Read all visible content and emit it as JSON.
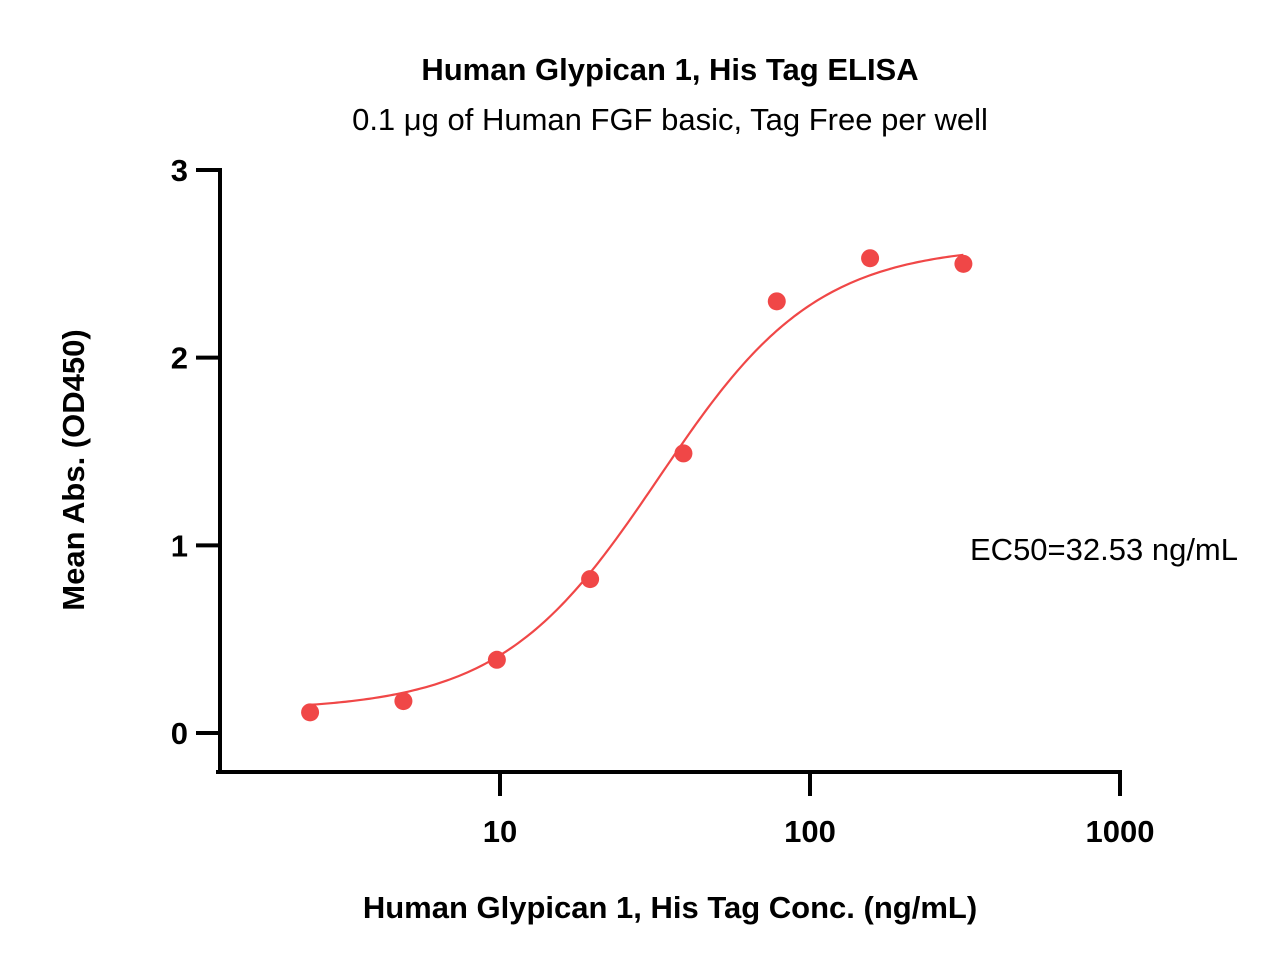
{
  "chart_data": {
    "type": "scatter",
    "title": "Human Glypican 1, His Tag ELISA",
    "subtitle": "0.1 μg of Human FGF basic, Tag Free per well",
    "xlabel": "Human Glypican 1, His Tag Conc. (ng/mL)",
    "ylabel": "Mean Abs. (OD450)",
    "xscale": "log",
    "xlim": [
      1,
      1000
    ],
    "ylim": [
      -0.2,
      3
    ],
    "xticks": [
      10,
      100,
      1000
    ],
    "xtick_labels": [
      "10",
      "100",
      "1000"
    ],
    "yticks": [
      0,
      1,
      2,
      3
    ],
    "ytick_labels": [
      "0",
      "1",
      "2",
      "3"
    ],
    "grid": false,
    "legend": "none",
    "color": "#f04747",
    "series": [
      {
        "x": [
          2.44,
          4.88,
          9.77,
          19.53,
          39.06,
          78.13,
          156.25,
          312.5
        ],
        "y": [
          0.11,
          0.17,
          0.39,
          0.82,
          1.49,
          2.3,
          2.53,
          2.5
        ]
      }
    ],
    "fit": {
      "model": "4PL",
      "bottom": 0.12,
      "top": 2.6,
      "ec50": 32.53,
      "hill": 1.7,
      "x_range": [
        2.44,
        312.5
      ]
    },
    "annotation": "EC50=32.53 ng/mL"
  }
}
